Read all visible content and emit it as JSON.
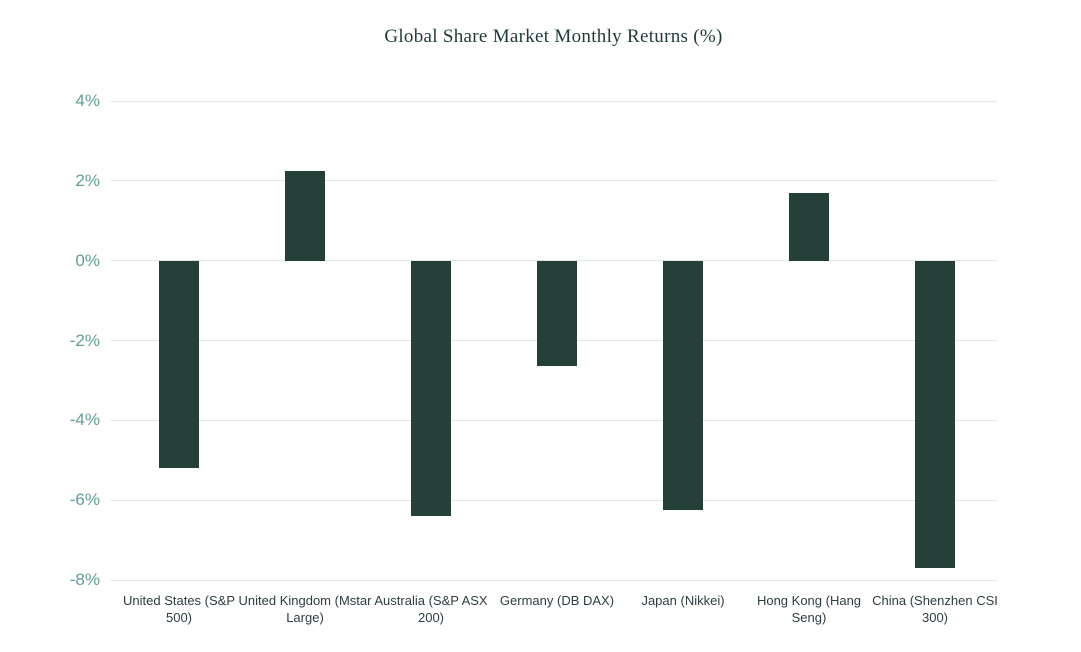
{
  "title": "Global Share Market Monthly Returns (%)",
  "chart_data": {
    "type": "bar",
    "title": "Global Share Market Monthly Returns (%)",
    "categories": [
      "United States (S&P 500)",
      "United Kingdom (Mstar Large)",
      "Australia (S&P ASX 200)",
      "Germany (DB DAX)",
      "Japan (Nikkei)",
      "Hong Kong (Hang Seng)",
      "China (Shenzhen CSI 300)"
    ],
    "values": [
      -5.2,
      2.25,
      -6.4,
      -2.65,
      -6.25,
      1.7,
      -7.7
    ],
    "xlabel": "",
    "ylabel": "",
    "ylim": [
      -8,
      4
    ],
    "yticks": [
      4,
      2,
      0,
      -2,
      -4,
      -6,
      -8
    ],
    "ytick_labels": [
      "4%",
      "2%",
      "0%",
      "-2%",
      "-4%",
      "-6%",
      "-8%"
    ],
    "grid": true,
    "legend": false,
    "bar_color": "#253f39",
    "grid_color": "#dfe9e5",
    "ytick_color": "#5f9e96",
    "xtick_color": "#2e3d42",
    "title_color": "#1d3a36",
    "background_color": "#ffffff"
  }
}
